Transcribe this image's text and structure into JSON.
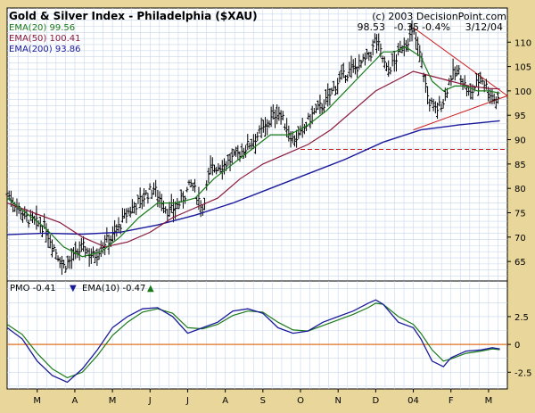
{
  "chart_data": {
    "type": "line",
    "title": "Gold & Silver Index - Philadelphia ($XAU)",
    "copyright": "(c) 2003 DecisionPoint.com",
    "last_bar": {
      "close": "98.53",
      "change": "-0.35",
      "pct": "-0.4%",
      "date": "3/12/04"
    },
    "legend": [
      {
        "label": "EMA(20) 99.56",
        "color": "#1a7a1a"
      },
      {
        "label": "EMA(50) 100.41",
        "color": "#8a1a3a"
      },
      {
        "label": "EMA(200) 93.86",
        "color": "#1a1a9a"
      }
    ],
    "price_axis": {
      "ylim": [
        61,
        117
      ],
      "ticks": [
        "65",
        "70",
        "75",
        "80",
        "85",
        "90",
        "95",
        "100",
        "105",
        "110"
      ]
    },
    "months": [
      "M",
      "A",
      "M",
      "J",
      "J",
      "A",
      "S",
      "O",
      "N",
      "D",
      "04",
      "F",
      "M"
    ],
    "x_range": [
      0,
      13.3
    ],
    "month_starts": [
      0.8,
      1.8,
      2.8,
      3.8,
      4.8,
      5.8,
      6.8,
      7.8,
      8.8,
      9.8,
      10.8,
      11.8,
      12.8
    ],
    "price_series": {
      "x": [
        0,
        0.5,
        1,
        1.3,
        1.5,
        1.8,
        2,
        2.3,
        2.6,
        2.8,
        3.2,
        3.6,
        3.9,
        4.3,
        4.6,
        4.9,
        5.2,
        5.4,
        5.8,
        6.3,
        6.8,
        7.2,
        7.6,
        7.8,
        8.1,
        8.5,
        8.8,
        9.1,
        9.5,
        9.7,
        9.8,
        10.1,
        10.3,
        10.5,
        10.8,
        11.0,
        11.2,
        11.4,
        11.6,
        11.8,
        12.0,
        12.3,
        12.6,
        12.8,
        13.0,
        13.1
      ],
      "close": [
        79,
        74,
        72,
        67,
        64,
        66,
        68,
        66,
        69,
        70,
        75,
        78,
        80,
        75,
        77,
        81,
        76,
        84,
        85,
        88,
        92,
        96,
        90,
        91,
        95,
        98,
        102,
        104,
        106,
        108,
        111,
        104,
        106,
        109,
        112,
        107,
        98,
        96,
        98,
        103,
        104,
        99,
        103,
        100,
        98,
        98.5
      ]
    },
    "ema20": {
      "x": [
        0,
        0.5,
        1,
        1.5,
        2,
        2.5,
        3,
        3.5,
        4,
        4.5,
        5,
        5.5,
        6,
        6.5,
        7,
        7.5,
        8,
        8.5,
        9,
        9.5,
        10,
        10.3,
        10.6,
        11,
        11.3,
        11.6,
        11.9,
        12.2,
        12.5,
        12.8,
        13.1
      ],
      "values": [
        78,
        75,
        72,
        68,
        66,
        67,
        70,
        74,
        77,
        77,
        78,
        82,
        85,
        88,
        91,
        91,
        93,
        96,
        100,
        104,
        108,
        108,
        109,
        107,
        102,
        100,
        101,
        101,
        100,
        100,
        99.56
      ]
    },
    "ema50": {
      "x": [
        0,
        0.7,
        1.4,
        2,
        2.6,
        3.2,
        3.8,
        4.4,
        5,
        5.6,
        6.2,
        6.8,
        7.4,
        8,
        8.6,
        9.2,
        9.8,
        10.3,
        10.8,
        11.3,
        11.8,
        12.3,
        12.8,
        13.1
      ],
      "values": [
        77,
        75,
        73,
        70,
        68,
        69,
        71,
        74,
        76,
        78,
        82,
        85,
        87,
        89,
        92,
        96,
        100,
        102,
        104,
        103,
        102,
        101,
        100.5,
        100.41
      ]
    },
    "ema200": {
      "x": [
        0,
        1,
        2,
        3,
        4,
        5,
        6,
        7,
        8,
        9,
        10,
        11,
        12,
        13.1
      ],
      "values": [
        70.5,
        70.8,
        70.6,
        71,
        72.5,
        74.5,
        77,
        80,
        83,
        86,
        89.5,
        92,
        93,
        93.86
      ]
    },
    "lines": {
      "upper_trend": {
        "x": [
          10.8,
          13.3
        ],
        "y": [
          113,
          99
        ]
      },
      "lower_trend": {
        "x": [
          10.8,
          13.3
        ],
        "y": [
          92,
          99
        ]
      },
      "support": {
        "y": 88
      }
    },
    "pmo": {
      "label": "PMO -0.41",
      "ema_label": "EMA(10) -0.47",
      "ylim": [
        -4,
        5.7
      ],
      "ticks": [
        "-2.5",
        "0",
        "2.5"
      ],
      "tick_values": [
        -2.5,
        0,
        2.5
      ],
      "x": [
        0,
        0.4,
        0.8,
        1.2,
        1.6,
        2.0,
        2.4,
        2.8,
        3.2,
        3.6,
        4.0,
        4.4,
        4.8,
        5.2,
        5.6,
        6.0,
        6.4,
        6.8,
        7.2,
        7.6,
        8.0,
        8.4,
        8.8,
        9.2,
        9.6,
        9.8,
        10.0,
        10.4,
        10.8,
        11.0,
        11.3,
        11.6,
        11.8,
        12.2,
        12.6,
        12.9,
        13.1
      ],
      "values": [
        1.5,
        0.5,
        -1.5,
        -2.8,
        -3.4,
        -2.2,
        -0.5,
        1.5,
        2.5,
        3.2,
        3.3,
        2.5,
        1.0,
        1.5,
        2.0,
        3.0,
        3.2,
        2.8,
        1.5,
        1.0,
        1.2,
        2.0,
        2.5,
        3.0,
        3.7,
        4.0,
        3.6,
        2.0,
        1.5,
        0.5,
        -1.5,
        -2.0,
        -1.2,
        -0.6,
        -0.5,
        -0.3,
        -0.41
      ],
      "ema10": [
        1.8,
        0.9,
        -0.8,
        -2.2,
        -3.0,
        -2.5,
        -1.0,
        0.8,
        2.0,
        2.9,
        3.2,
        2.8,
        1.5,
        1.4,
        1.8,
        2.6,
        3.0,
        2.9,
        2.0,
        1.3,
        1.2,
        1.7,
        2.2,
        2.7,
        3.3,
        3.7,
        3.6,
        2.5,
        1.8,
        1.0,
        -0.5,
        -1.5,
        -1.3,
        -0.8,
        -0.6,
        -0.4,
        -0.47
      ]
    }
  }
}
